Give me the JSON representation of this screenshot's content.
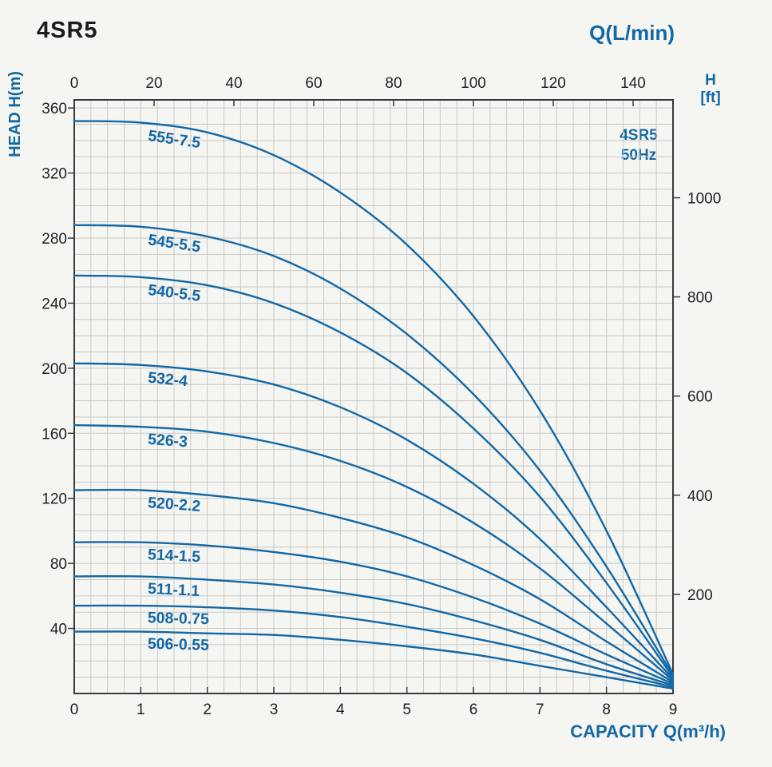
{
  "header": {
    "title": "4SR5"
  },
  "legend": {
    "line1": "4SR5",
    "line2": "50Hz"
  },
  "colors": {
    "accent": "#1368a6",
    "text": "#1c1c1c",
    "tick_text": "#222222",
    "grid": "#c9c9c5",
    "axis": "#3a3a3a",
    "background": "#f5f5f1"
  },
  "chart_data": {
    "type": "line",
    "title": "4SR5 50Hz pump performance curves (head vs capacity)",
    "xlabel": "CAPACITY Q(m³/h)",
    "ylabel": "HEAD H(m)",
    "x_axis": {
      "min": 0,
      "max": 9,
      "ticks": [
        0,
        1,
        2,
        3,
        4,
        5,
        6,
        7,
        8,
        9
      ]
    },
    "y_axis": {
      "min": 0,
      "max": 365,
      "ticks": [
        40,
        80,
        120,
        160,
        200,
        240,
        280,
        320,
        360
      ]
    },
    "top_axis": {
      "label": "Q(L/min)",
      "min": 0,
      "max": 150,
      "ticks": [
        0,
        20,
        40,
        60,
        80,
        100,
        120,
        140
      ]
    },
    "right_axis": {
      "label_line1": "H",
      "label_line2": "[ft]",
      "ft_per_m": 3.2808,
      "ticks": [
        200,
        400,
        600,
        800,
        1000
      ]
    },
    "grid": {
      "x_step": 0.25,
      "y_step": 10
    },
    "legend_position": "top-right-inside",
    "label_x": 1.1,
    "x": [
      0,
      1,
      2,
      3,
      4,
      5,
      6,
      7,
      8,
      9
    ],
    "series": [
      {
        "name": "555-7.5",
        "values": [
          352,
          351,
          345,
          331,
          308,
          276,
          232,
          174,
          100,
          12
        ]
      },
      {
        "name": "545-5.5",
        "values": [
          288,
          287,
          281,
          269,
          249,
          221,
          184,
          137,
          78,
          11
        ]
      },
      {
        "name": "540-5.5",
        "values": [
          257,
          256,
          251,
          240,
          222,
          197,
          163,
          121,
          68,
          10
        ]
      },
      {
        "name": "532-4",
        "values": [
          203,
          202,
          198,
          190,
          176,
          156,
          129,
          95,
          53,
          9
        ]
      },
      {
        "name": "526-3",
        "values": [
          165,
          164,
          161,
          154,
          143,
          127,
          105,
          77,
          43,
          8
        ]
      },
      {
        "name": "520-2.2",
        "values": [
          125,
          125,
          122,
          117,
          108,
          96,
          79,
          58,
          32,
          7
        ]
      },
      {
        "name": "514-1.5",
        "values": [
          93,
          93,
          91,
          87,
          81,
          72,
          59,
          43,
          24,
          6
        ]
      },
      {
        "name": "511-1.1",
        "values": [
          72,
          72,
          70,
          67,
          62,
          55,
          45,
          33,
          18,
          5
        ]
      },
      {
        "name": "508-0.75",
        "values": [
          54,
          54,
          53,
          51,
          47,
          41,
          34,
          25,
          14,
          4
        ]
      },
      {
        "name": "506-0.55",
        "values": [
          38,
          38,
          37,
          36,
          33,
          29,
          24,
          17,
          10,
          3
        ]
      }
    ]
  }
}
